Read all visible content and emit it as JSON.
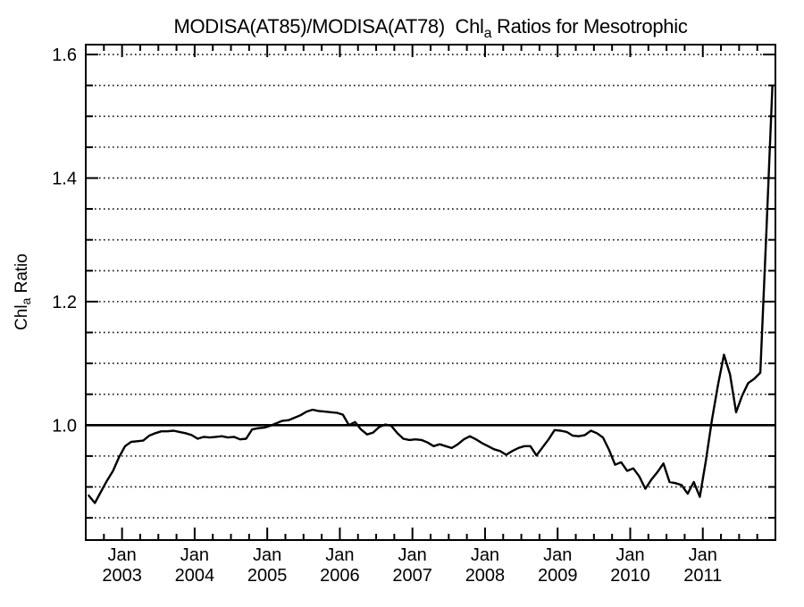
{
  "chart_data": {
    "type": "line",
    "title_parts": {
      "prefix": "MODISA(AT85)/MODISA(AT78)  Chl",
      "sub": "a",
      "suffix": " Ratios for Mesotrophic"
    },
    "ylabel_parts": {
      "prefix": "Chl",
      "sub": "a",
      "suffix": " Ratio"
    },
    "x_axis": {
      "month_label": "Jan",
      "year_labels": [
        "2003",
        "2004",
        "2005",
        "2006",
        "2007",
        "2008",
        "2009",
        "2010",
        "2011"
      ],
      "start_month": "Jul 2002",
      "end_month": "Dec 2011",
      "minor_tick_step_months": 3,
      "major_tick_step_months": 12
    },
    "y_axis": {
      "tick_values": [
        1.0,
        1.2,
        1.4,
        1.6
      ],
      "tick_labels": [
        "1.0",
        "1.2",
        "1.4",
        "1.6"
      ],
      "minor_step": 0.05,
      "grid_min": 0.85,
      "grid_max": 1.6,
      "range": [
        0.814,
        1.616
      ],
      "grid_style": "dotted",
      "reference_line": 1.0
    },
    "series": [
      {
        "name": "MODISA(AT85)/MODISA(AT78) Chla ratio, mesotrophic",
        "frequency": "monthly",
        "start": "2002-07",
        "values": [
          0.886,
          0.874,
          0.892,
          0.91,
          0.926,
          0.948,
          0.966,
          0.973,
          0.974,
          0.975,
          0.983,
          0.987,
          0.99,
          0.99,
          0.991,
          0.989,
          0.987,
          0.984,
          0.978,
          0.981,
          0.98,
          0.981,
          0.982,
          0.98,
          0.981,
          0.977,
          0.978,
          0.993,
          0.995,
          0.996,
          0.999,
          1.003,
          1.007,
          1.008,
          1.012,
          1.016,
          1.022,
          1.025,
          1.023,
          1.022,
          1.021,
          1.02,
          1.017,
          1.0,
          1.005,
          0.993,
          0.985,
          0.988,
          0.997,
          1.001,
          0.999,
          0.987,
          0.978,
          0.976,
          0.977,
          0.976,
          0.972,
          0.966,
          0.969,
          0.966,
          0.963,
          0.969,
          0.977,
          0.982,
          0.977,
          0.971,
          0.966,
          0.961,
          0.958,
          0.952,
          0.958,
          0.963,
          0.966,
          0.966,
          0.951,
          0.964,
          0.977,
          0.992,
          0.991,
          0.989,
          0.983,
          0.982,
          0.984,
          0.991,
          0.987,
          0.98,
          0.96,
          0.936,
          0.94,
          0.926,
          0.93,
          0.917,
          0.897,
          0.912,
          0.924,
          0.938,
          0.908,
          0.906,
          0.903,
          0.889,
          0.908,
          0.884,
          0.942,
          1.008,
          1.065,
          1.114,
          1.082,
          1.021,
          1.048,
          1.068,
          1.075,
          1.085,
          1.31,
          1.548
        ]
      }
    ],
    "colors": {
      "line": "#000000",
      "grid": "#111111",
      "frame": "#000000",
      "background": "#ffffff"
    },
    "legend": "none"
  }
}
